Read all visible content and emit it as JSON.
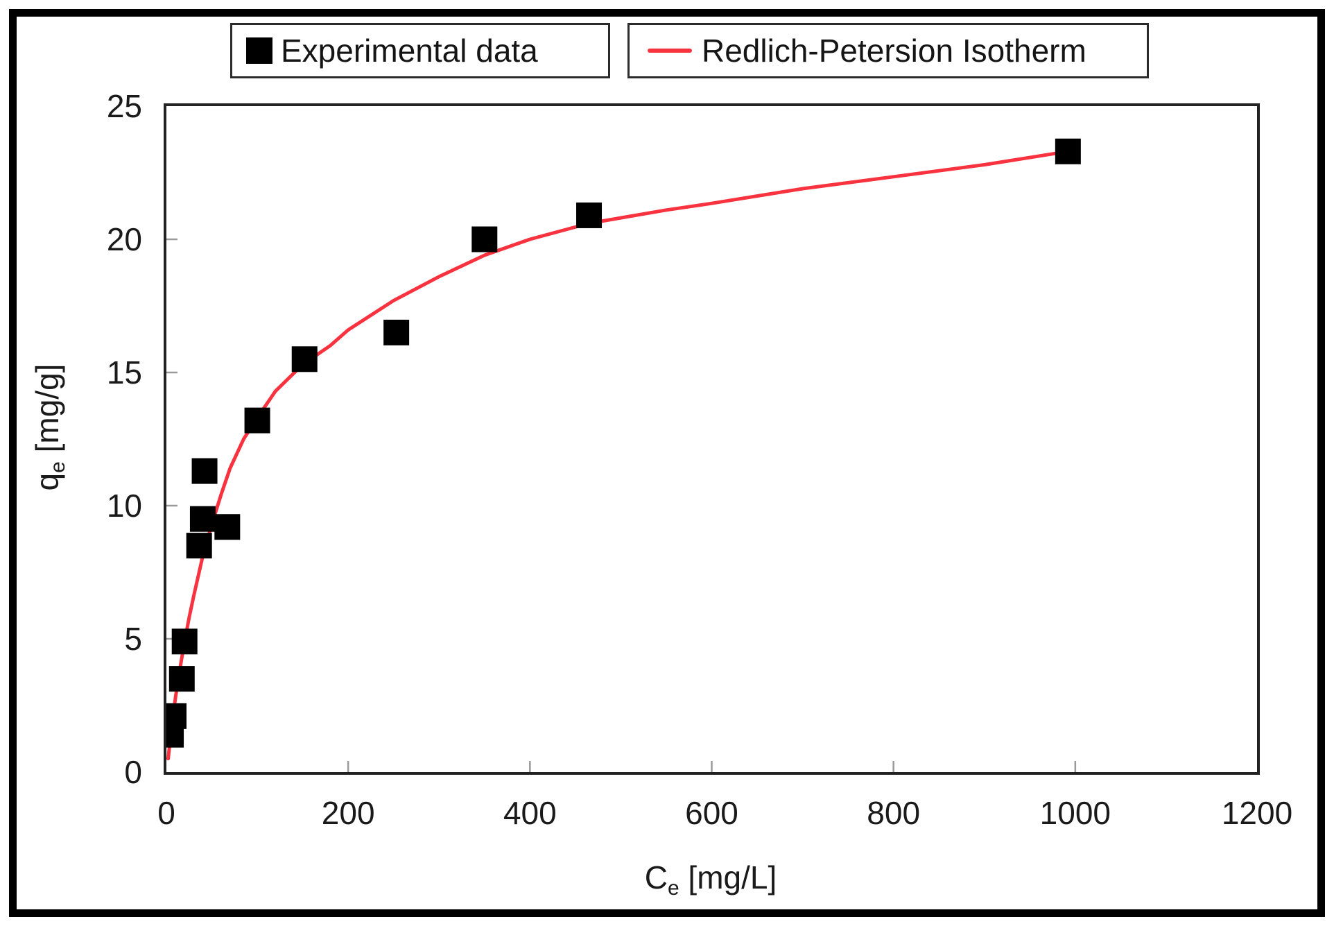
{
  "figure": {
    "background": "#ffffff",
    "border_color": "#000000",
    "legend_position": "top"
  },
  "axes": {
    "x": {
      "label_main": "C",
      "label_sub": "e",
      "label_rest": " [mg/L]",
      "ticks": [
        "0",
        "200",
        "400",
        "600",
        "800",
        "1000",
        "1200"
      ]
    },
    "y": {
      "label_main": "q",
      "label_sub": "e",
      "label_rest": " [mg/g]",
      "ticks": [
        "0",
        "5",
        "10",
        "15",
        "20",
        "25"
      ]
    }
  },
  "chart_data": {
    "type": "scatter",
    "title": "",
    "xlabel": "Ce [mg/L]",
    "ylabel": "qe [mg/g]",
    "xlim": [
      0,
      1200
    ],
    "ylim": [
      0,
      25
    ],
    "x_ticks": [
      0,
      200,
      400,
      600,
      800,
      1000,
      1200
    ],
    "y_ticks": [
      0,
      5,
      10,
      15,
      20,
      25
    ],
    "grid": false,
    "legend_position": "top",
    "series": [
      {
        "name": "Experimental data",
        "type": "scatter",
        "marker": "square",
        "color": "#000000",
        "points": [
          [
            5,
            1.4
          ],
          [
            8,
            2.1
          ],
          [
            17,
            3.5
          ],
          [
            20,
            4.9
          ],
          [
            36,
            8.5
          ],
          [
            40,
            9.5
          ],
          [
            42,
            11.3
          ],
          [
            67,
            9.2
          ],
          [
            100,
            13.2
          ],
          [
            152,
            15.5
          ],
          [
            253,
            16.5
          ],
          [
            350,
            20.0
          ],
          [
            465,
            20.9
          ],
          [
            992,
            23.3
          ]
        ]
      },
      {
        "name": "Redlich-Petersion Isotherm",
        "type": "line",
        "color": "#f8333f",
        "points": [
          [
            2,
            0.5
          ],
          [
            5,
            1.5
          ],
          [
            10,
            2.8
          ],
          [
            15,
            3.9
          ],
          [
            20,
            4.9
          ],
          [
            25,
            5.8
          ],
          [
            30,
            6.6
          ],
          [
            40,
            8.1
          ],
          [
            50,
            9.3
          ],
          [
            60,
            10.4
          ],
          [
            70,
            11.4
          ],
          [
            85,
            12.5
          ],
          [
            100,
            13.3
          ],
          [
            120,
            14.3
          ],
          [
            150,
            15.3
          ],
          [
            180,
            16.0
          ],
          [
            200,
            16.6
          ],
          [
            250,
            17.7
          ],
          [
            300,
            18.6
          ],
          [
            350,
            19.4
          ],
          [
            400,
            20.0
          ],
          [
            465,
            20.6
          ],
          [
            550,
            21.1
          ],
          [
            600,
            21.35
          ],
          [
            700,
            21.9
          ],
          [
            800,
            22.35
          ],
          [
            900,
            22.8
          ],
          [
            992,
            23.3
          ]
        ]
      }
    ]
  }
}
